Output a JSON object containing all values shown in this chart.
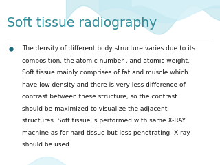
{
  "title": "Soft tissue radiography",
  "title_color": "#2E8B9A",
  "title_fontsize": 13.5,
  "bullet_text": "The density of different body structure varies due to its composition, the atomic number , and atomic weight. Soft tissue mainly comprises of fat and muscle which have low density and there is very less difference of contrast between these structure, so the contrast should be maximized to visualize the adjacent structures. Soft tissue is performed with same X-RAY machine as for hard tissue but less penetrating  X ray should be used.",
  "bullet_color": "#1a6a7a",
  "text_color": "#1a1a1a",
  "bullet_fontsize": 6.5,
  "bg_color": "#ffffff",
  "wave_color1": "#a8dde8",
  "wave_color2": "#c5eaf3",
  "wave_color3": "#daf3f8",
  "wave_color_bottom": "#b8e8f2"
}
